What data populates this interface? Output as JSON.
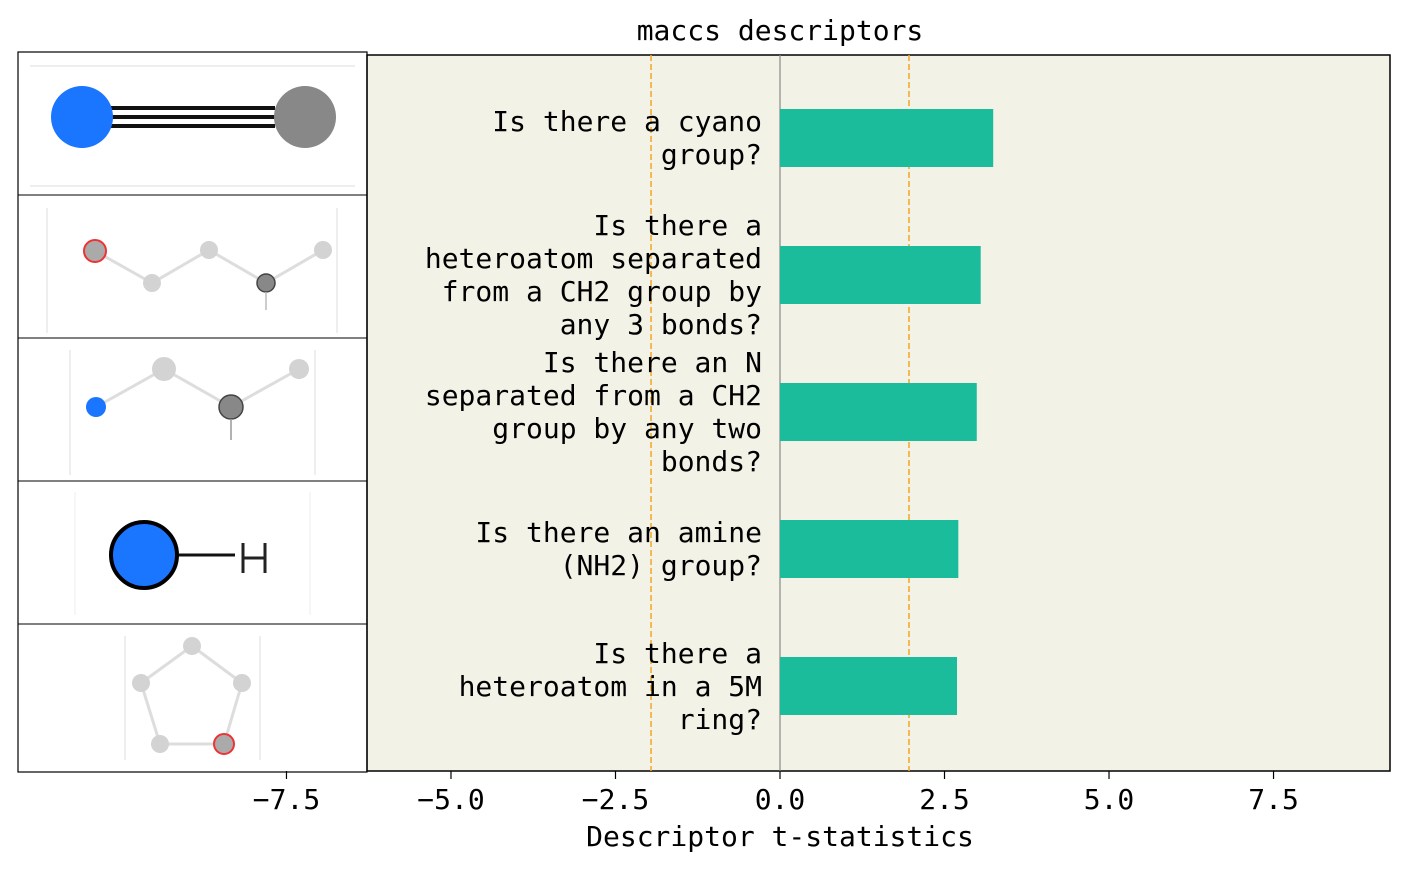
{
  "chart_data": {
    "type": "barh",
    "title": "maccs descriptors",
    "xlabel": "Descriptor t-statistics",
    "categories": [
      "Is there a cyano\ngroup?",
      "Is there a\nheteroatom separated\nfrom a CH2 group by\nany 3 bonds?",
      "Is there an N\nseparated from a CH2\ngroup by any two\nbonds?",
      "Is there an amine\n(NH2) group?",
      "Is there a\nheteroatom in a 5M\nring?"
    ],
    "values": [
      3.24,
      3.05,
      2.99,
      2.71,
      2.69
    ],
    "color": "#1abc9c",
    "thresholds": [
      -1.96,
      1.96
    ],
    "threshold_color": "#f5a623",
    "xlim": [
      -11.58,
      9.27
    ],
    "xticks": [
      {
        "value": -7.5,
        "label": "−7.5"
      },
      {
        "value": -5,
        "label": "−5.0"
      },
      {
        "value": -2.5,
        "label": "−2.5"
      },
      {
        "value": 0,
        "label": "0.0"
      },
      2.5,
      {
        "value": 5,
        "label": "5.0"
      },
      7.5
    ]
  }
}
